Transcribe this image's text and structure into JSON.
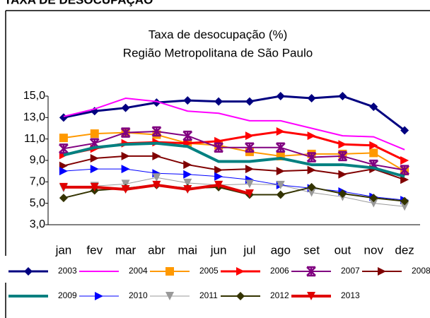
{
  "header": "TAXA DE DESOCUPAÇÃO",
  "chart_data": {
    "type": "line",
    "title": "Taxa de desocupação (%)",
    "subtitle": "Região Metropolitana de São Paulo",
    "categories": [
      "jan",
      "fev",
      "mar",
      "abr",
      "mai",
      "jun",
      "jul",
      "ago",
      "set",
      "out",
      "nov",
      "dez"
    ],
    "ylim": [
      3,
      15
    ],
    "yticks": [
      {
        "value": 3,
        "label": "3,0"
      },
      {
        "value": 5,
        "label": "5,0"
      },
      {
        "value": 7,
        "label": "7,0"
      },
      {
        "value": 9,
        "label": "9,0"
      },
      {
        "value": 11,
        "label": "11,0"
      },
      {
        "value": 13,
        "label": "13,0"
      },
      {
        "value": 15,
        "label": "15,0"
      }
    ],
    "grid": false,
    "legend": "bottom",
    "series": [
      {
        "name": "2003",
        "color": "#000080",
        "marker": "diamond",
        "width": 3,
        "values": [
          13.0,
          13.6,
          13.9,
          14.4,
          14.6,
          14.5,
          14.5,
          15.0,
          14.8,
          15.0,
          14.0,
          11.8
        ]
      },
      {
        "name": "2004",
        "color": "#ff00ff",
        "marker": "none",
        "width": 2,
        "values": [
          13.1,
          13.8,
          14.8,
          14.5,
          13.6,
          13.4,
          12.7,
          12.7,
          12.0,
          11.3,
          11.2,
          10.0
        ]
      },
      {
        "name": "2005",
        "color": "#ff9900",
        "marker": "square",
        "width": 2,
        "values": [
          11.1,
          11.5,
          11.6,
          11.4,
          10.6,
          10.4,
          9.8,
          9.4,
          9.6,
          9.6,
          9.7,
          8.0
        ]
      },
      {
        "name": "2006",
        "color": "#ff0000",
        "marker": "triangle-right",
        "width": 3,
        "values": [
          9.5,
          10.1,
          10.6,
          10.7,
          10.6,
          10.8,
          11.3,
          11.7,
          11.3,
          10.5,
          10.4,
          9.0
        ]
      },
      {
        "name": "2007",
        "color": "#800080",
        "marker": "star",
        "width": 2,
        "values": [
          10.1,
          10.6,
          11.6,
          11.7,
          11.3,
          10.2,
          10.2,
          10.2,
          9.3,
          9.4,
          8.6,
          8.1
        ]
      },
      {
        "name": "2008",
        "color": "#800000",
        "marker": "triangle-right",
        "width": 2,
        "values": [
          8.5,
          9.2,
          9.4,
          9.4,
          8.6,
          8.1,
          8.2,
          8.0,
          8.1,
          7.7,
          8.2,
          7.2
        ]
      },
      {
        "name": "2009",
        "color": "#008080",
        "marker": "none",
        "width": 4,
        "values": [
          9.5,
          10.2,
          10.5,
          10.6,
          10.3,
          8.9,
          8.9,
          9.2,
          8.6,
          8.6,
          8.3,
          7.5
        ]
      },
      {
        "name": "2010",
        "color": "#0000ff",
        "marker": "triangle-right",
        "width": 1,
        "values": [
          8.0,
          8.2,
          8.2,
          7.8,
          7.7,
          7.5,
          7.2,
          6.7,
          6.4,
          6.1,
          5.6,
          5.3
        ]
      },
      {
        "name": "2011",
        "color": "#999999",
        "marker": "triangle-down",
        "width": 1,
        "values": [
          6.4,
          6.6,
          6.8,
          7.4,
          6.9,
          6.7,
          6.8,
          6.7,
          6.0,
          5.6,
          5.0,
          4.7
        ]
      },
      {
        "name": "2012",
        "color": "#333300",
        "marker": "diamond",
        "width": 2,
        "values": [
          5.5,
          6.2,
          6.4,
          6.7,
          6.4,
          6.5,
          5.8,
          5.8,
          6.5,
          5.9,
          5.5,
          5.2
        ]
      },
      {
        "name": "2013",
        "color": "#e00000",
        "marker": "triangle-down",
        "width": 4,
        "values": [
          6.5,
          6.5,
          6.3,
          6.7,
          6.3,
          6.7,
          5.9,
          null,
          null,
          null,
          null,
          null
        ]
      }
    ]
  }
}
